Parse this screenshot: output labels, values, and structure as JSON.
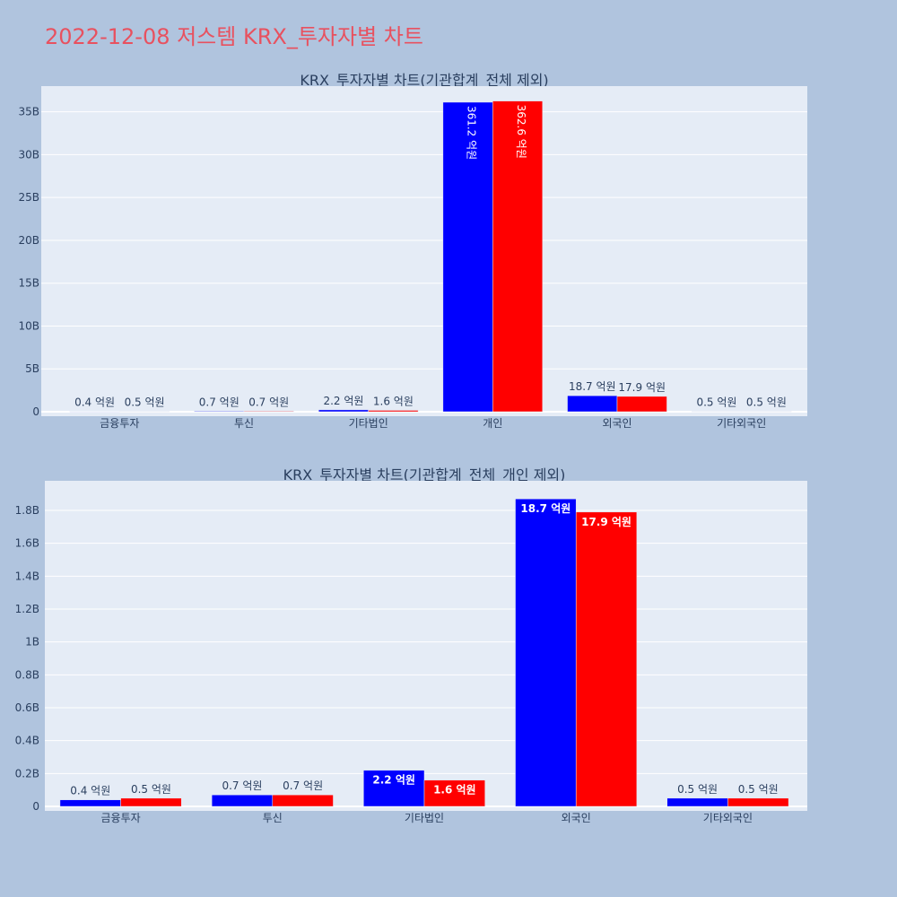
{
  "page_title": "2022-12-08 저스템 KRX_투자자별 차트",
  "chart_data": [
    {
      "type": "bar",
      "title": "KRX_투자자별 차트(기관합계_전체 제외)",
      "categories": [
        "금융투자",
        "투신",
        "기타법인",
        "개인",
        "외국인",
        "기타외국인"
      ],
      "ylim": [
        0,
        38000000000
      ],
      "ytick_values": [
        0,
        5000000000,
        10000000000,
        15000000000,
        20000000000,
        25000000000,
        30000000000,
        35000000000
      ],
      "ytick_labels": [
        "0",
        "5B",
        "10B",
        "15B",
        "20B",
        "25B",
        "30B",
        "35B"
      ],
      "series": [
        {
          "color": "#0000ff",
          "values": [
            40000000,
            70000000,
            220000000,
            36120000000,
            1870000000,
            50000000
          ],
          "labels": [
            "0.4 억원",
            "0.7 억원",
            "2.2 억원",
            "361.2 억원",
            "18.7 억원",
            "0.5 억원"
          ]
        },
        {
          "color": "#ff0000",
          "values": [
            50000000,
            70000000,
            160000000,
            36260000000,
            1790000000,
            50000000
          ],
          "labels": [
            "0.5 억원",
            "0.7 억원",
            "1.6 억원",
            "362.6 억원",
            "17.9 억원",
            "0.5 억원"
          ]
        }
      ],
      "grid": true,
      "legend": "none"
    },
    {
      "type": "bar",
      "title": "KRX_투자자별 차트(기관합계_전체_개인 제외)",
      "categories": [
        "금융투자",
        "투신",
        "기타법인",
        "외국인",
        "기타외국인"
      ],
      "ylim": [
        0,
        1980000000
      ],
      "ytick_values": [
        0,
        200000000,
        400000000,
        600000000,
        800000000,
        1000000000,
        1200000000,
        1400000000,
        1600000000,
        1800000000
      ],
      "ytick_labels": [
        "0",
        "0.2B",
        "0.4B",
        "0.6B",
        "0.8B",
        "1B",
        "1.2B",
        "1.4B",
        "1.6B",
        "1.8B"
      ],
      "series": [
        {
          "color": "#0000ff",
          "values": [
            40000000,
            70000000,
            220000000,
            1870000000,
            50000000
          ],
          "labels": [
            "0.4 억원",
            "0.7 억원",
            "2.2 억원",
            "18.7 억원",
            "0.5 억원"
          ]
        },
        {
          "color": "#ff0000",
          "values": [
            50000000,
            70000000,
            160000000,
            1790000000,
            50000000
          ],
          "labels": [
            "0.5 억원",
            "0.7 억원",
            "1.6 억원",
            "17.9 억원",
            "0.5 억원"
          ]
        }
      ],
      "grid": true,
      "legend": "none"
    }
  ]
}
